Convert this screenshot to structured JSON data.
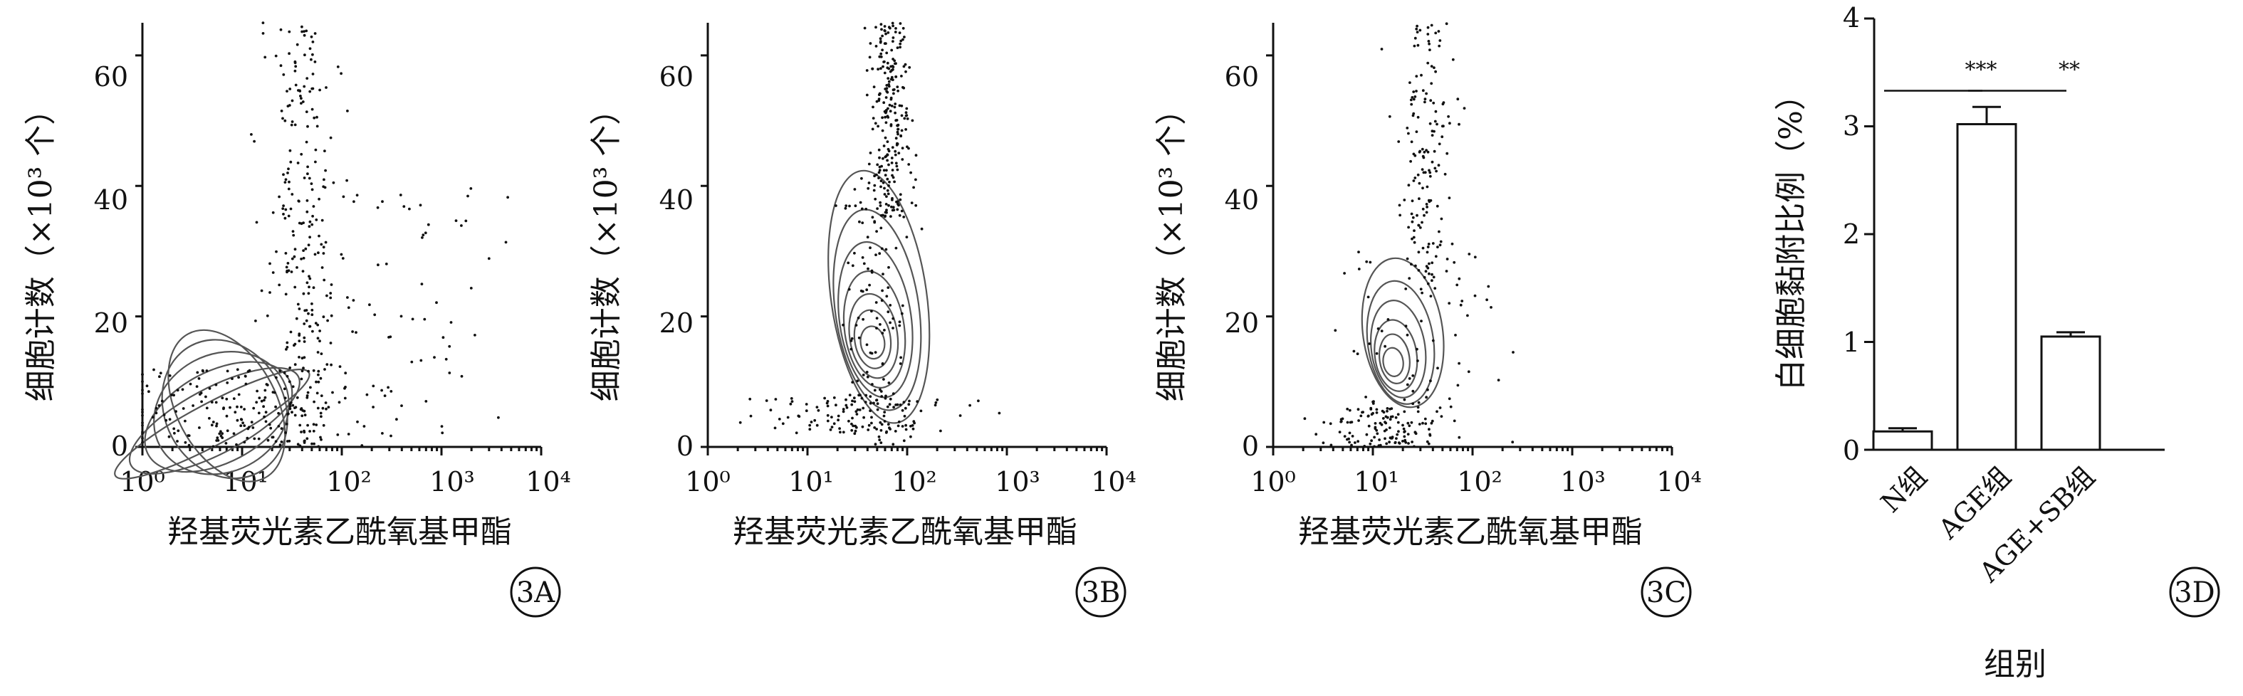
{
  "chart_data": [
    {
      "type": "scatter",
      "panel_label": "3A",
      "xlabel": "羟基荧光素乙酰氧基甲酯",
      "ylabel": "细胞计数（×10³ 个）",
      "x_scale": "log",
      "xlim": [
        1,
        10000
      ],
      "ylim": [
        0,
        65
      ],
      "x_ticks": [
        "10⁰",
        "10¹",
        "10²",
        "10³",
        "10⁴"
      ],
      "y_ticks": [
        "0",
        "20",
        "40",
        "60"
      ],
      "density_center": {
        "x": 5,
        "y": 3.5
      },
      "contour_rings": [
        {
          "cx": 5,
          "cy": 3.5,
          "rx_decades": 1.1,
          "ry": 3.2
        },
        {
          "cx": 5.3,
          "cy": 4.0,
          "rx_decades": 0.95,
          "ry": 5.0
        },
        {
          "cx": 5.8,
          "cy": 4.6,
          "rx_decades": 0.8,
          "ry": 7.0
        },
        {
          "cx": 6.2,
          "cy": 5.2,
          "rx_decades": 0.7,
          "ry": 9.0
        },
        {
          "cx": 6.7,
          "cy": 5.8,
          "rx_decades": 0.6,
          "ry": 11.0
        },
        {
          "cx": 7.0,
          "cy": 6.3,
          "rx_decades": 0.5,
          "ry": 12.5
        }
      ],
      "scatter_cloud": [
        {
          "x_center": 40,
          "x_spread_decades": 0.35,
          "y_min": 0,
          "y_max": 65,
          "n": 260
        },
        {
          "x_center": 8,
          "x_spread_decades": 1.2,
          "y_min": 0,
          "y_max": 12,
          "n": 180
        },
        {
          "x_center": 300,
          "x_spread_decades": 1.2,
          "y_min": 0,
          "y_max": 40,
          "n": 70
        }
      ]
    },
    {
      "type": "scatter",
      "panel_label": "3B",
      "xlabel": "羟基荧光素乙酰氧基甲酯",
      "ylabel": "细胞计数（×10³ 个）",
      "x_scale": "log",
      "xlim": [
        1,
        10000
      ],
      "ylim": [
        0,
        65
      ],
      "x_ticks": [
        "10⁰",
        "10¹",
        "10²",
        "10³",
        "10⁴"
      ],
      "y_ticks": [
        "0",
        "20",
        "40",
        "60"
      ],
      "density_center": {
        "x": 45,
        "y": 16
      },
      "contour_rings": [
        {
          "cx": 45,
          "cy": 16,
          "rx_decades": 0.12,
          "ry": 2.5
        },
        {
          "cx": 45,
          "cy": 16.5,
          "rx_decades": 0.18,
          "ry": 4.5
        },
        {
          "cx": 46,
          "cy": 17,
          "rx_decades": 0.24,
          "ry": 6.5
        },
        {
          "cx": 47,
          "cy": 18,
          "rx_decades": 0.3,
          "ry": 9.0
        },
        {
          "cx": 48,
          "cy": 19.5,
          "rx_decades": 0.36,
          "ry": 12.0
        },
        {
          "cx": 50,
          "cy": 21,
          "rx_decades": 0.42,
          "ry": 15.5
        },
        {
          "cx": 52,
          "cy": 23,
          "rx_decades": 0.48,
          "ry": 19.5
        }
      ],
      "scatter_cloud": [
        {
          "x_center": 65,
          "x_spread_decades": 0.2,
          "y_min": 35,
          "y_max": 65,
          "n": 240
        },
        {
          "x_center": 30,
          "x_spread_decades": 1.0,
          "y_min": 2,
          "y_max": 8,
          "n": 120
        },
        {
          "x_center": 50,
          "x_spread_decades": 0.4,
          "y_min": 0,
          "y_max": 40,
          "n": 120
        }
      ]
    },
    {
      "type": "scatter",
      "panel_label": "3C",
      "xlabel": "羟基荧光素乙酰氧基甲酯",
      "ylabel": "细胞计数（×10³ 个）",
      "x_scale": "log",
      "xlim": [
        1,
        10000
      ],
      "ylim": [
        0,
        65
      ],
      "x_ticks": [
        "10⁰",
        "10¹",
        "10²",
        "10³",
        "10⁴"
      ],
      "y_ticks": [
        "0",
        "20",
        "40",
        "60"
      ],
      "density_center": {
        "x": 16,
        "y": 13
      },
      "contour_rings": [
        {
          "cx": 16,
          "cy": 13,
          "rx_decades": 0.1,
          "ry": 2.2
        },
        {
          "cx": 16.5,
          "cy": 13.5,
          "rx_decades": 0.15,
          "ry": 3.8
        },
        {
          "cx": 17,
          "cy": 14,
          "rx_decades": 0.21,
          "ry": 5.5
        },
        {
          "cx": 18,
          "cy": 15,
          "rx_decades": 0.27,
          "ry": 7.5
        },
        {
          "cx": 19,
          "cy": 16,
          "rx_decades": 0.33,
          "ry": 9.5
        },
        {
          "cx": 20,
          "cy": 17.5,
          "rx_decades": 0.4,
          "ry": 11.5
        }
      ],
      "scatter_cloud": [
        {
          "x_center": 35,
          "x_spread_decades": 0.25,
          "y_min": 25,
          "y_max": 65,
          "n": 150
        },
        {
          "x_center": 12,
          "x_spread_decades": 0.6,
          "y_min": 0,
          "y_max": 6,
          "n": 110
        },
        {
          "x_center": 30,
          "x_spread_decades": 0.8,
          "y_min": 0,
          "y_max": 30,
          "n": 90
        }
      ]
    },
    {
      "type": "bar",
      "panel_label": "3D",
      "xlabel": "组别",
      "ylabel": "白细胞黏附比例（%）",
      "categories": [
        "N组",
        "AGE组",
        "AGE+SB组"
      ],
      "values": [
        0.17,
        3.02,
        1.05
      ],
      "errors": [
        0.03,
        0.16,
        0.04
      ],
      "ylim": [
        0,
        4
      ],
      "y_ticks": [
        "0",
        "1",
        "2",
        "3",
        "4"
      ],
      "significance": [
        {
          "from": 0,
          "to": 1,
          "label": "***",
          "y": 3.33
        },
        {
          "from": 1,
          "to": 2,
          "label": "**",
          "y": 3.33
        }
      ]
    }
  ]
}
